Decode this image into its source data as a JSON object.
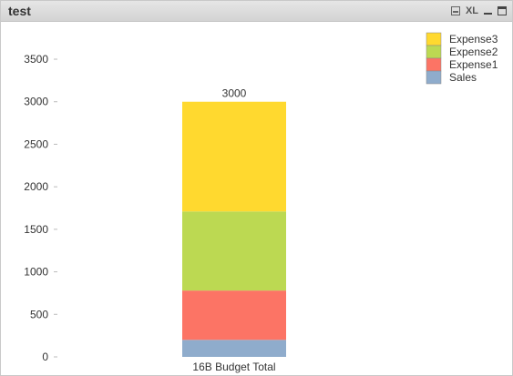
{
  "window": {
    "title": "test",
    "icons": [
      "print-icon",
      "xl-icon",
      "minimize-icon",
      "maximize-icon"
    ],
    "xl_label": "XL"
  },
  "chart_data": {
    "type": "bar",
    "stacked": true,
    "categories": [
      "16B Budget Total"
    ],
    "series": [
      {
        "name": "Sales",
        "values": [
          200
        ],
        "color": "#8faccc"
      },
      {
        "name": "Expense1",
        "values": [
          580
        ],
        "color": "#fc7465"
      },
      {
        "name": "Expense2",
        "values": [
          930
        ],
        "color": "#bcd952"
      },
      {
        "name": "Expense3",
        "values": [
          1290
        ],
        "color": "#ffd92f"
      }
    ],
    "total_labels": [
      "3000"
    ],
    "ylim": [
      0,
      3800
    ],
    "yticks": [
      0,
      500,
      1000,
      1500,
      2000,
      2500,
      3000,
      3500
    ],
    "legend_order": [
      "Expense3",
      "Expense2",
      "Expense1",
      "Sales"
    ],
    "legend_position": "top-right",
    "grid": false
  }
}
